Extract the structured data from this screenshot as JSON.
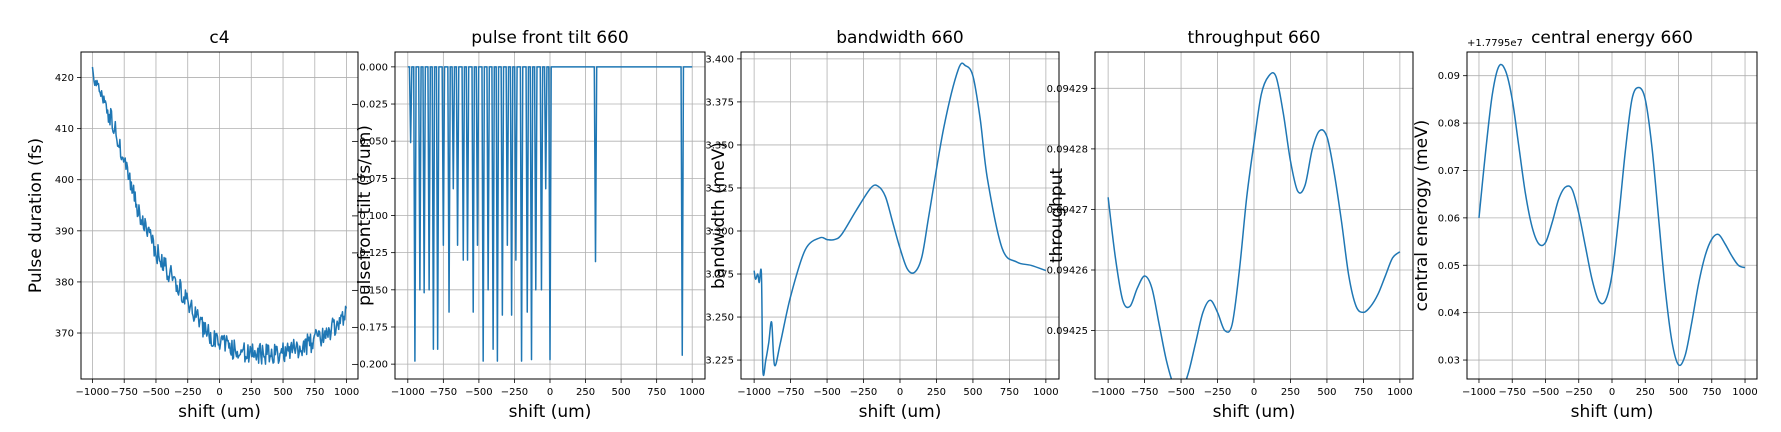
{
  "figure": {
    "line_color": "#1f77b4",
    "grid_color": "#b0b0b0"
  },
  "chart_data": [
    {
      "type": "line",
      "title": "c4",
      "xlabel": "shift (um)",
      "ylabel": "Pulse duration (fs)",
      "xlim": [
        -1090,
        1090
      ],
      "ylim": [
        361,
        425
      ],
      "xticks": [
        -1000,
        -750,
        -500,
        -250,
        0,
        250,
        500,
        750,
        1000
      ],
      "xtick_labels": [
        "−1000",
        "−750",
        "−500",
        "−250",
        "0",
        "250",
        "500",
        "750",
        "1000"
      ],
      "yticks": [
        370,
        380,
        390,
        400,
        410,
        420
      ],
      "ytick_labels": [
        "370",
        "380",
        "390",
        "400",
        "410",
        "420"
      ],
      "grid": true,
      "noisy": true,
      "series": [
        {
          "x": [
            -1000,
            -900,
            -800,
            -750,
            -700,
            -600,
            -500,
            -400,
            -300,
            -200,
            -100,
            0,
            100,
            200,
            300,
            400,
            500,
            600,
            700,
            800,
            900,
            1000
          ],
          "y": [
            421,
            415,
            408,
            403,
            399,
            391,
            386,
            382,
            378,
            374,
            370,
            368,
            367,
            366,
            366,
            366,
            366,
            367,
            368,
            369,
            371,
            374
          ]
        }
      ]
    },
    {
      "type": "line",
      "title": "pulse front tilt 660",
      "xlabel": "shift (um)",
      "ylabel": "pulsefront tilt (fs/um)",
      "xlim": [
        -1090,
        1090
      ],
      "ylim": [
        -0.21,
        0.01
      ],
      "xticks": [
        -1000,
        -750,
        -500,
        -250,
        0,
        250,
        500,
        750,
        1000
      ],
      "xtick_labels": [
        "−1000",
        "−750",
        "−500",
        "−250",
        "0",
        "250",
        "500",
        "750",
        "1000"
      ],
      "yticks": [
        0,
        -0.025,
        -0.05,
        -0.075,
        -0.1,
        -0.125,
        -0.15,
        -0.175,
        -0.2
      ],
      "ytick_labels": [
        "0.000",
        "−0.025",
        "−0.050",
        "−0.075",
        "−0.100",
        "−0.125",
        "−0.150",
        "−0.175",
        "−0.200"
      ],
      "grid": true,
      "baseline": 0,
      "spikes": [
        {
          "x": -980,
          "y": -0.051
        },
        {
          "x": -950,
          "y": -0.198
        },
        {
          "x": -915,
          "y": -0.15
        },
        {
          "x": -885,
          "y": -0.152
        },
        {
          "x": -850,
          "y": -0.15
        },
        {
          "x": -820,
          "y": -0.19
        },
        {
          "x": -790,
          "y": -0.19
        },
        {
          "x": -750,
          "y": -0.12
        },
        {
          "x": -710,
          "y": -0.165
        },
        {
          "x": -680,
          "y": -0.082
        },
        {
          "x": -650,
          "y": -0.12
        },
        {
          "x": -610,
          "y": -0.13
        },
        {
          "x": -580,
          "y": -0.13
        },
        {
          "x": -540,
          "y": -0.165
        },
        {
          "x": -510,
          "y": -0.12
        },
        {
          "x": -470,
          "y": -0.198
        },
        {
          "x": -435,
          "y": -0.15
        },
        {
          "x": -400,
          "y": -0.19
        },
        {
          "x": -370,
          "y": -0.198
        },
        {
          "x": -335,
          "y": -0.167
        },
        {
          "x": -300,
          "y": -0.12
        },
        {
          "x": -270,
          "y": -0.167
        },
        {
          "x": -240,
          "y": -0.13
        },
        {
          "x": -200,
          "y": -0.198
        },
        {
          "x": -160,
          "y": -0.165
        },
        {
          "x": -130,
          "y": -0.197
        },
        {
          "x": -100,
          "y": -0.15
        },
        {
          "x": -60,
          "y": -0.15
        },
        {
          "x": -30,
          "y": -0.082
        },
        {
          "x": 0,
          "y": -0.197
        },
        {
          "x": 320,
          "y": -0.131
        },
        {
          "x": 930,
          "y": -0.194
        }
      ]
    },
    {
      "type": "line",
      "title": "bandwidth 660",
      "xlabel": "shift (um)",
      "ylabel": "bandwidth (meV)",
      "xlim": [
        -1090,
        1090
      ],
      "ylim": [
        3.214,
        3.404
      ],
      "xticks": [
        -1000,
        -750,
        -500,
        -250,
        0,
        250,
        500,
        750,
        1000
      ],
      "xtick_labels": [
        "−1000",
        "−750",
        "−500",
        "−250",
        "0",
        "250",
        "500",
        "750",
        "1000"
      ],
      "yticks": [
        3.225,
        3.25,
        3.275,
        3.3,
        3.325,
        3.35,
        3.375,
        3.4
      ],
      "ytick_labels": [
        "3.225",
        "3.250",
        "3.275",
        "3.300",
        "3.325",
        "3.350",
        "3.375",
        "3.400"
      ],
      "grid": true,
      "series": [
        {
          "x": [
            -1000,
            -990,
            -975,
            -965,
            -950,
            -940,
            -920,
            -900,
            -880,
            -860,
            -820,
            -750,
            -650,
            -550,
            -500,
            -450,
            -400,
            -300,
            -200,
            -150,
            -100,
            -50,
            0,
            50,
            100,
            150,
            200,
            300,
            400,
            450,
            500,
            550,
            600,
            700,
            800,
            900,
            1000
          ],
          "y": [
            3.277,
            3.272,
            3.275,
            3.27,
            3.275,
            3.219,
            3.225,
            3.235,
            3.247,
            3.222,
            3.235,
            3.262,
            3.289,
            3.296,
            3.295,
            3.295,
            3.298,
            3.312,
            3.325,
            3.326,
            3.32,
            3.305,
            3.29,
            3.278,
            3.276,
            3.285,
            3.31,
            3.36,
            3.394,
            3.396,
            3.39,
            3.365,
            3.33,
            3.29,
            3.282,
            3.28,
            3.277
          ]
        }
      ]
    },
    {
      "type": "line",
      "title": "throughput 660",
      "xlabel": "shift (um)",
      "ylabel": "throughput",
      "xlim": [
        -1090,
        1090
      ],
      "ylim": [
        0.094242,
        0.094296
      ],
      "xticks": [
        -1000,
        -750,
        -500,
        -250,
        0,
        250,
        500,
        750,
        1000
      ],
      "xtick_labels": [
        "−1000",
        "−750",
        "−500",
        "−250",
        "0",
        "250",
        "500",
        "750",
        "1000"
      ],
      "yticks": [
        0.09425,
        0.09426,
        0.09427,
        0.09428,
        0.09429
      ],
      "ytick_labels": [
        "0.09425",
        "0.09426",
        "0.09427",
        "0.09428",
        "0.09429"
      ],
      "grid": true,
      "series": [
        {
          "x": [
            -1000,
            -950,
            -900,
            -850,
            -800,
            -750,
            -700,
            -650,
            -600,
            -550,
            -500,
            -450,
            -400,
            -350,
            -300,
            -250,
            -200,
            -150,
            -100,
            -50,
            0,
            50,
            100,
            150,
            200,
            250,
            300,
            350,
            400,
            450,
            500,
            550,
            600,
            650,
            700,
            750,
            800,
            850,
            900,
            950,
            1000
          ],
          "y": [
            0.094272,
            0.094262,
            0.094255,
            0.094254,
            0.094257,
            0.094259,
            0.094257,
            0.094251,
            0.094245,
            0.094241,
            0.09424,
            0.094243,
            0.094248,
            0.094253,
            0.094255,
            0.094253,
            0.09425,
            0.094251,
            0.09426,
            0.094272,
            0.094281,
            0.094289,
            0.094292,
            0.094292,
            0.094286,
            0.094278,
            0.094273,
            0.094274,
            0.09428,
            0.094283,
            0.094282,
            0.094276,
            0.094268,
            0.094259,
            0.094254,
            0.094253,
            0.094254,
            0.094256,
            0.094259,
            0.094262,
            0.094263
          ]
        }
      ]
    },
    {
      "type": "line",
      "title": "central energy 660",
      "xlabel": "shift (um)",
      "ylabel": "central enerogy (meV)",
      "offset_text": "+1.7795e7",
      "xlim": [
        -1090,
        1090
      ],
      "ylim": [
        0.026,
        0.095
      ],
      "xticks": [
        -1000,
        -750,
        -500,
        -250,
        0,
        250,
        500,
        750,
        1000
      ],
      "xtick_labels": [
        "−1000",
        "−750",
        "−500",
        "−250",
        "0",
        "250",
        "500",
        "750",
        "1000"
      ],
      "yticks": [
        0.03,
        0.04,
        0.05,
        0.06,
        0.07,
        0.08,
        0.09
      ],
      "ytick_labels": [
        "0.03",
        "0.04",
        "0.05",
        "0.06",
        "0.07",
        "0.08",
        "0.09"
      ],
      "grid": true,
      "series": [
        {
          "x": [
            -1000,
            -950,
            -900,
            -850,
            -800,
            -750,
            -700,
            -650,
            -600,
            -550,
            -500,
            -450,
            -400,
            -350,
            -300,
            -250,
            -200,
            -150,
            -100,
            -50,
            0,
            50,
            100,
            150,
            200,
            250,
            300,
            350,
            400,
            450,
            500,
            550,
            600,
            650,
            700,
            750,
            800,
            850,
            900,
            950,
            1000
          ],
          "y": [
            0.06,
            0.074,
            0.086,
            0.092,
            0.091,
            0.085,
            0.075,
            0.065,
            0.058,
            0.0545,
            0.0548,
            0.059,
            0.064,
            0.0665,
            0.066,
            0.061,
            0.054,
            0.047,
            0.0425,
            0.0425,
            0.048,
            0.06,
            0.074,
            0.085,
            0.0875,
            0.085,
            0.075,
            0.06,
            0.045,
            0.034,
            0.029,
            0.031,
            0.038,
            0.046,
            0.052,
            0.0555,
            0.0565,
            0.0545,
            0.052,
            0.05,
            0.0495
          ]
        }
      ]
    }
  ]
}
